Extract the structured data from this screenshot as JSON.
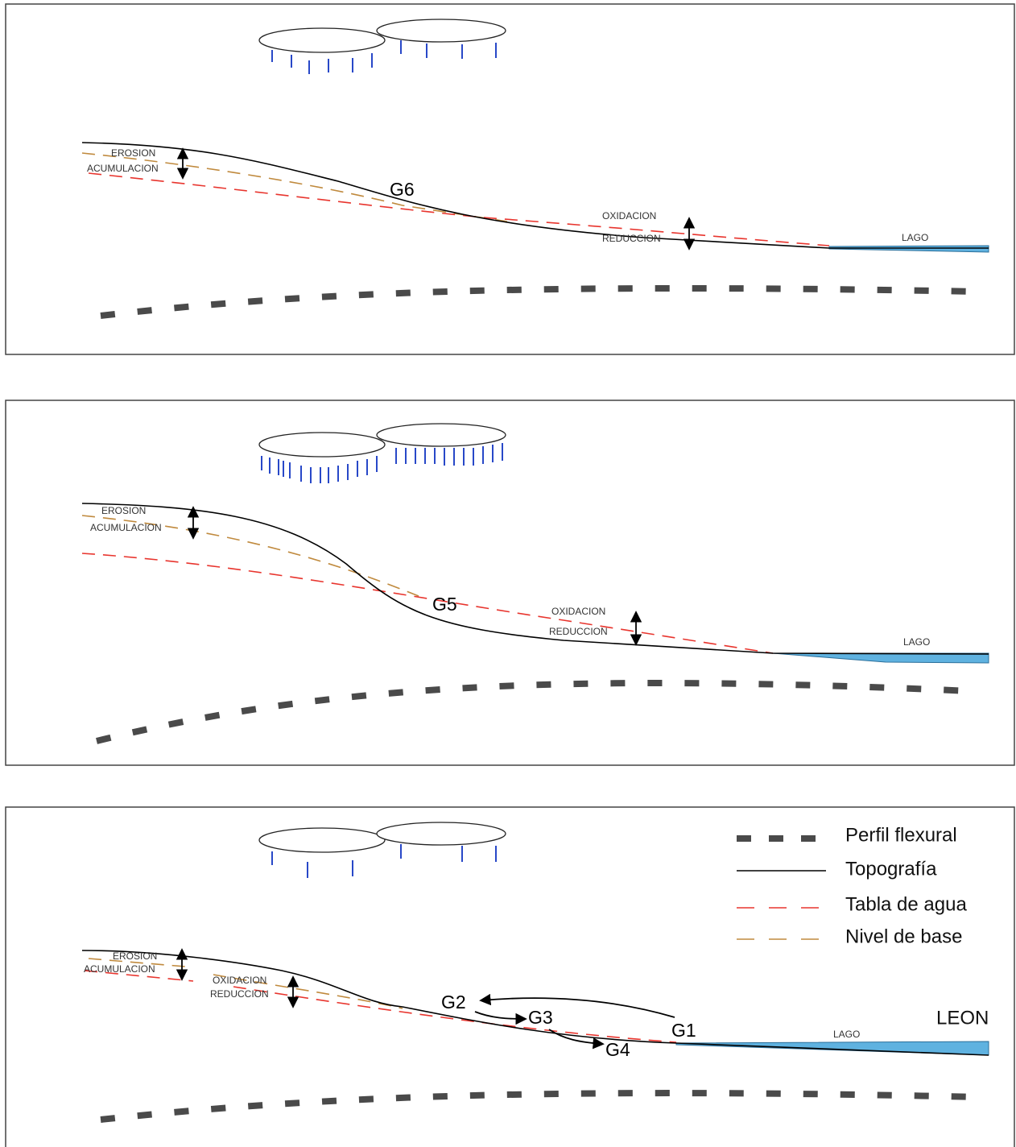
{
  "panels": [
    {
      "erosion": "EROSION",
      "acumulacion": "ACUMULACION",
      "stage": "G6",
      "oxidacion": "OXIDACION",
      "reduccion": "REDUCCION",
      "lago": "LAGO"
    },
    {
      "erosion": "EROSION",
      "acumulacion": "ACUMULACION",
      "stage": "G5",
      "oxidacion": "OXIDACION",
      "reduccion": "REDUCCION",
      "lago": "LAGO"
    },
    {
      "erosion": "EROSION",
      "acumulacion": "ACUMULACION",
      "oxidacion": "OXIDACION",
      "reduccion": "REDUCCION",
      "stages": [
        "G2",
        "G3",
        "G4",
        "G1"
      ],
      "lago": "LAGO",
      "place": "LEON"
    }
  ],
  "legend": [
    "Perfil flexural",
    "Topografía",
    "Tabla de agua",
    "Nivel de base"
  ]
}
